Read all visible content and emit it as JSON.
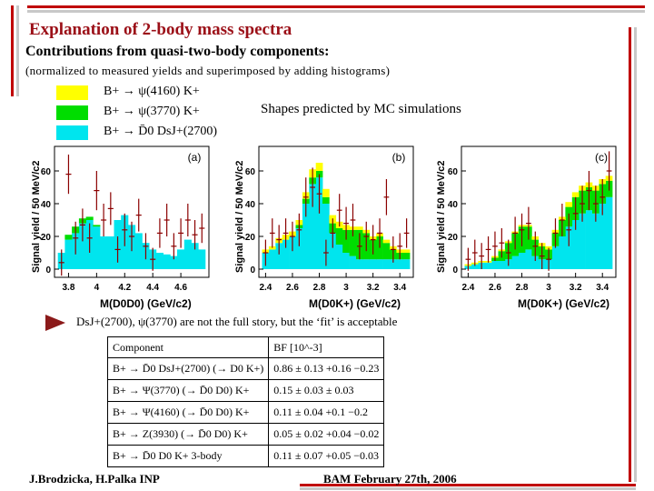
{
  "slide": {
    "title": "Explanation of 2-body mass spectra",
    "subtitle": "Contributions from quasi-two-body components:",
    "note": "(normalized to measured yields and superimposed by adding histograms)",
    "shapes_note": "Shapes predicted by MC simulations",
    "conclusion": "DsJ+(2700), ψ(3770) are not the full story, but the ‘fit’ is acceptable",
    "footer_left": "J.Brodzicka, H.Palka INP",
    "footer_right": "BAM February 27th, 2006"
  },
  "legend": [
    {
      "label": "B+ → ψ(4160) K+",
      "color": "#ffff00"
    },
    {
      "label": "B+ → ψ(3770) K+",
      "color": "#00dd00"
    },
    {
      "label": "B+ → D̄0 DsJ+(2700)",
      "color": "#00e5ee"
    }
  ],
  "table": {
    "header": [
      "Component",
      "BF [10^-3]"
    ],
    "rows": [
      {
        "component": "B+ → D̄0 DsJ+(2700) (→ D0 K+)",
        "value": "0.86 ± 0.13 +0.16 −0.23"
      },
      {
        "component": "B+ → Ψ(3770) (→ D̄0 D0) K+",
        "value": "0.15 ± 0.03 ± 0.03"
      },
      {
        "component": "B+ → Ψ(4160) (→ D̄0 D0) K+",
        "value": "0.11 ± 0.04 +0.1 −0.2"
      },
      {
        "component": "B+ → Z(3930) (→ D̄0 D0) K+",
        "value": "0.05 ± 0.02 +0.04 −0.02"
      },
      {
        "component": "B+ → D̄0 D0 K+ 3-body",
        "value": "0.11 ± 0.07 +0.05 −0.03"
      }
    ]
  },
  "chart_data": [
    {
      "type": "bar",
      "panel_label": "(a)",
      "xlabel": "M(D0D0) (GeV/c2)",
      "ylabel": "Signal yield / 50 MeV/c2",
      "xticks": [
        "3.8",
        "4",
        "4.2",
        "4.4",
        "4.6"
      ],
      "yticks": [
        "0",
        "20",
        "40",
        "60"
      ],
      "xlim": [
        3.7,
        4.8
      ],
      "ylim": [
        -5,
        75
      ],
      "x": [
        3.75,
        3.8,
        3.85,
        3.9,
        3.95,
        4.0,
        4.05,
        4.1,
        4.15,
        4.2,
        4.25,
        4.3,
        4.35,
        4.4,
        4.45,
        4.5,
        4.55,
        4.6,
        4.65,
        4.7,
        4.75
      ],
      "series": [
        {
          "name": "B+ → D̄0 DsJ+(2700)",
          "color": "#00e5ee",
          "values": [
            10,
            18,
            22,
            28,
            30,
            26,
            20,
            20,
            30,
            33,
            27,
            22,
            16,
            12,
            10,
            9,
            8,
            12,
            18,
            16,
            12
          ]
        },
        {
          "name": "B+ → ψ(3770) K+",
          "color": "#00dd00",
          "values": [
            0,
            3,
            4,
            3,
            2,
            1,
            0,
            0,
            0,
            0,
            0,
            0,
            0,
            0,
            0,
            0,
            0,
            0,
            0,
            0,
            0
          ]
        },
        {
          "name": "B+ → ψ(4160) K+",
          "color": "#ffff00",
          "values": [
            0,
            0,
            0,
            0,
            0,
            0,
            0,
            0,
            0,
            0,
            0,
            0,
            0,
            0,
            0,
            0,
            0,
            0,
            0,
            0,
            0
          ]
        }
      ],
      "data_points": {
        "values": [
          4,
          58,
          19,
          27,
          19,
          48,
          30,
          37,
          12,
          24,
          20,
          33,
          14,
          6,
          22,
          30,
          14,
          22,
          30,
          21,
          25
        ],
        "errors": [
          8,
          12,
          10,
          10,
          9,
          12,
          10,
          10,
          8,
          10,
          9,
          10,
          8,
          7,
          9,
          10,
          8,
          9,
          10,
          9,
          9
        ]
      }
    },
    {
      "type": "bar",
      "panel_label": "(b)",
      "xlabel": "M(D0K+) (GeV/c2)",
      "ylabel": "Signal yield / 50 MeV/c2",
      "xticks": [
        "2.4",
        "2.6",
        "2.8",
        "3",
        "3.2",
        "3.4"
      ],
      "yticks": [
        "0",
        "20",
        "40",
        "60"
      ],
      "xlim": [
        2.35,
        3.5
      ],
      "ylim": [
        -5,
        75
      ],
      "x": [
        2.4,
        2.45,
        2.5,
        2.55,
        2.6,
        2.65,
        2.7,
        2.75,
        2.8,
        2.85,
        2.9,
        2.95,
        3.0,
        3.05,
        3.1,
        3.15,
        3.2,
        3.25,
        3.3,
        3.35,
        3.4,
        3.45
      ],
      "series": [
        {
          "name": "B+ → D̄0 DsJ+(2700)",
          "color": "#00e5ee",
          "values": [
            10,
            12,
            16,
            18,
            20,
            25,
            40,
            52,
            56,
            40,
            22,
            15,
            10,
            8,
            6,
            6,
            6,
            6,
            6,
            6,
            6,
            6
          ]
        },
        {
          "name": "B+ → ψ(3770) K+",
          "color": "#00dd00",
          "values": [
            0,
            0,
            0,
            0,
            0,
            2,
            3,
            4,
            4,
            4,
            6,
            10,
            14,
            16,
            18,
            16,
            12,
            14,
            10,
            6,
            4,
            4
          ]
        },
        {
          "name": "B+ → ψ(4160) K+",
          "color": "#ffff00",
          "values": [
            2,
            2,
            3,
            3,
            3,
            3,
            4,
            5,
            5,
            5,
            5,
            4,
            3,
            2,
            2,
            2,
            2,
            2,
            2,
            2,
            2,
            2
          ]
        }
      ],
      "data_points": {
        "values": [
          10,
          22,
          18,
          22,
          20,
          24,
          44,
          50,
          46,
          10,
          22,
          36,
          28,
          30,
          14,
          20,
          18,
          22,
          44,
          12,
          14,
          22
        ],
        "errors": [
          8,
          9,
          9,
          9,
          9,
          10,
          12,
          12,
          12,
          8,
          9,
          10,
          10,
          10,
          8,
          9,
          9,
          9,
          11,
          8,
          8,
          9
        ]
      }
    },
    {
      "type": "bar",
      "panel_label": "(c)",
      "xlabel": "M(D0K+) (GeV/c2)",
      "ylabel": "Signal yield / 50 MeV/c2",
      "xticks": [
        "2.4",
        "2.6",
        "2.8",
        "3",
        "3.2",
        "3.4"
      ],
      "yticks": [
        "0",
        "20",
        "40",
        "60"
      ],
      "xlim": [
        2.35,
        3.5
      ],
      "ylim": [
        -5,
        75
      ],
      "x": [
        2.4,
        2.45,
        2.5,
        2.55,
        2.6,
        2.65,
        2.7,
        2.75,
        2.8,
        2.85,
        2.9,
        2.95,
        3.0,
        3.05,
        3.1,
        3.15,
        3.2,
        3.25,
        3.3,
        3.35,
        3.4,
        3.45
      ],
      "series": [
        {
          "name": "B+ → D̄0 DsJ+(2700)",
          "color": "#00e5ee",
          "values": [
            2,
            3,
            4,
            4,
            5,
            5,
            6,
            8,
            10,
            12,
            8,
            6,
            6,
            14,
            20,
            26,
            30,
            34,
            36,
            34,
            40,
            44
          ]
        },
        {
          "name": "B+ → ψ(3770) K+",
          "color": "#00dd00",
          "values": [
            0,
            0,
            0,
            0,
            2,
            6,
            10,
            14,
            16,
            14,
            10,
            8,
            6,
            8,
            10,
            12,
            14,
            14,
            14,
            14,
            12,
            10
          ]
        },
        {
          "name": "B+ → ψ(4160) K+",
          "color": "#ffff00",
          "values": [
            1,
            1,
            1,
            1,
            1,
            1,
            1,
            1,
            1,
            1,
            2,
            2,
            2,
            2,
            2,
            3,
            3,
            3,
            3,
            3,
            3,
            3
          ]
        }
      ],
      "data_points": {
        "values": [
          6,
          10,
          8,
          12,
          14,
          16,
          10,
          22,
          24,
          28,
          14,
          8,
          6,
          22,
          30,
          24,
          34,
          40,
          48,
          40,
          44,
          60
        ],
        "errors": [
          7,
          8,
          8,
          8,
          9,
          9,
          8,
          10,
          10,
          10,
          9,
          8,
          7,
          9,
          10,
          10,
          10,
          11,
          12,
          11,
          11,
          12
        ]
      }
    }
  ]
}
